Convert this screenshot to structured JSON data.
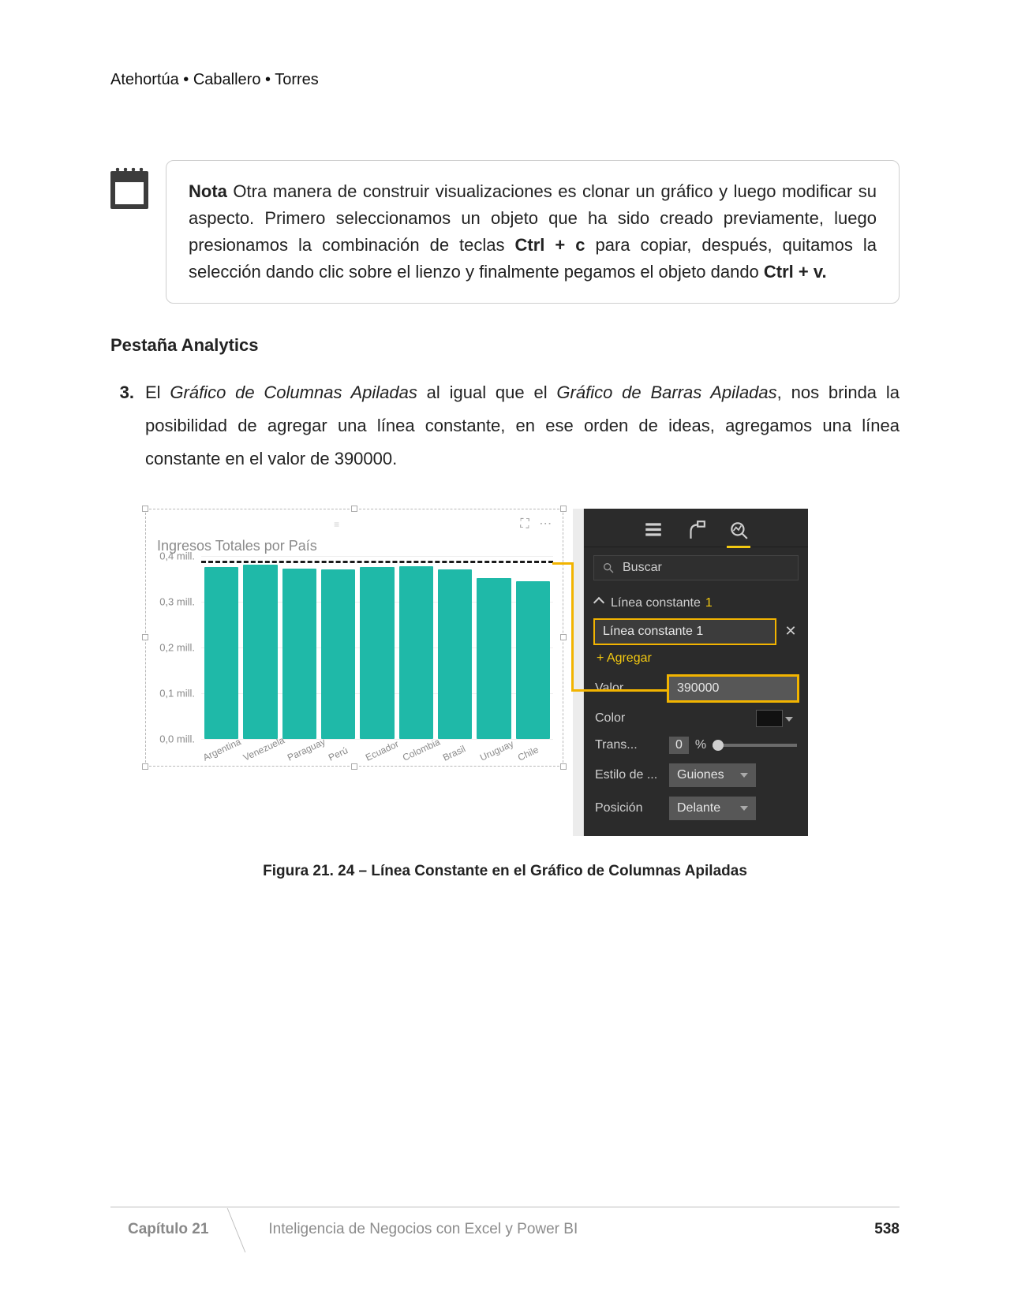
{
  "authors": "Atehortúa • Caballero • Torres",
  "note": {
    "label": "Nota",
    "text_1": " Otra manera de construir visualizaciones es clonar un gráfico y luego modificar su aspecto. Primero seleccionamos un objeto que ha sido creado previamente, luego presionamos la combinación de teclas ",
    "kbd_1": "Ctrl + c",
    "text_2": " para copiar, después, quitamos la selección dando clic sobre el lienzo y finalmente pegamos el objeto dando ",
    "kbd_2": "Ctrl + v.",
    "text_3": ""
  },
  "section_heading": "Pestaña Analytics",
  "list_item": {
    "number": "3.",
    "pre": "El ",
    "italic_1": "Gráfico de Columnas Apiladas",
    "mid": " al igual que el ",
    "italic_2": "Gráfico de Barras Apiladas",
    "post": ", nos brinda la posibilidad de agregar una línea constante, en ese orden de ideas, agregamos una línea constante en el valor de 390000."
  },
  "chart": {
    "type": "bar",
    "title": "Ingresos Totales por País",
    "ylim_max_mill": 0.4,
    "y_ticks": [
      "0,4 mill.",
      "0,3 mill.",
      "0,2 mill.",
      "0,1 mill.",
      "0,0 mill."
    ],
    "grid_color": "#efefef",
    "bar_color": "#1fb9a8",
    "constant_line_value_mill": 0.39,
    "constant_line_color": "#1a1a1a",
    "categories": [
      "Argentina",
      "Venezuela",
      "Paraguay",
      "Perú",
      "Ecuador",
      "Colombia",
      "Brasil",
      "Uruguay",
      "Chile"
    ],
    "values_mill": [
      0.375,
      0.38,
      0.372,
      0.37,
      0.375,
      0.378,
      0.37,
      0.352,
      0.345
    ],
    "callout_color": "#f2b400"
  },
  "panel": {
    "search_placeholder": "Buscar",
    "section_label": "Línea constante",
    "section_count": "1",
    "chip_label": "Línea constante 1",
    "add_label": "+ Agregar",
    "value_label": "Valor",
    "value": "390000",
    "color_label": "Color",
    "color_hex": "#111111",
    "trans_label": "Trans...",
    "trans_value": "0",
    "trans_unit": "%",
    "style_label": "Estilo de ...",
    "style_value": "Guiones",
    "position_label": "Posición",
    "position_value": "Delante",
    "accent": "#f2c811",
    "highlight": "#f2b400",
    "panel_bg": "#2b2b2b"
  },
  "caption": "Figura 21. 24 – Línea Constante en el Gráfico de Columnas Apiladas",
  "footer": {
    "chapter": "Capítulo 21",
    "title": "Inteligencia de Negocios con Excel y Power BI",
    "page": "538"
  }
}
